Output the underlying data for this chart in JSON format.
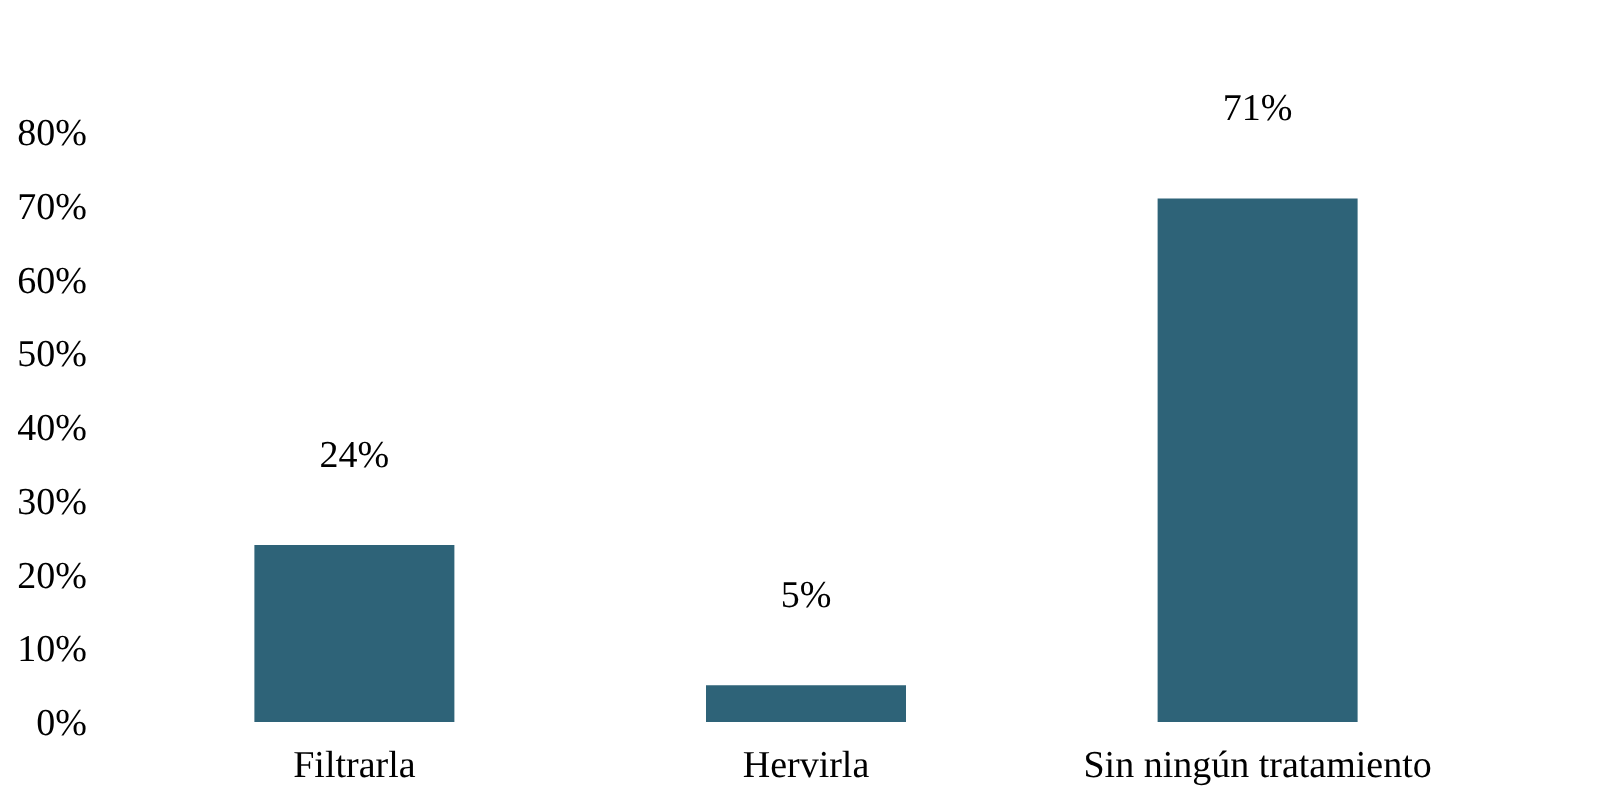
{
  "chart_data": {
    "type": "bar",
    "categories": [
      "Filtrarla",
      "Hervirla",
      "Sin ningún tratamiento"
    ],
    "values": [
      24,
      5,
      71
    ],
    "color": "#2e6378",
    "value_labels": [
      "24%",
      "5%",
      "71%"
    ],
    "ylim": [
      0,
      80
    ],
    "yticks": [
      {
        "value": 0,
        "label": "0%"
      },
      {
        "value": 10,
        "label": "10%"
      },
      {
        "value": 20,
        "label": "20%"
      },
      {
        "value": 30,
        "label": "30%"
      },
      {
        "value": 40,
        "label": "40%"
      },
      {
        "value": 50,
        "label": "50%"
      },
      {
        "value": 60,
        "label": "60%"
      },
      {
        "value": 70,
        "label": "70%"
      },
      {
        "value": 80,
        "label": "80%"
      }
    ],
    "grid": false
  }
}
